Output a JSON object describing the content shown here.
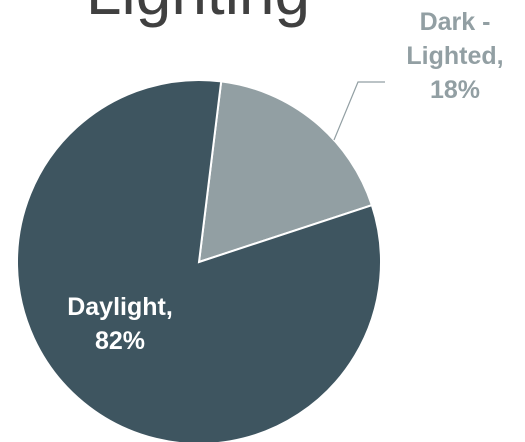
{
  "chart_data": {
    "type": "pie",
    "title": "Lighting",
    "slices": [
      {
        "label_lines": [
          "Dark -",
          "Lighted,",
          "18%"
        ],
        "value": 18,
        "color": "#929fa3",
        "label_color": "#929fa3"
      },
      {
        "label_lines": [
          "Daylight,",
          "82%"
        ],
        "value": 82,
        "color": "#3e5560",
        "label_color": "#ffffff"
      }
    ],
    "start_angle_deg": 7,
    "legend": "none"
  }
}
